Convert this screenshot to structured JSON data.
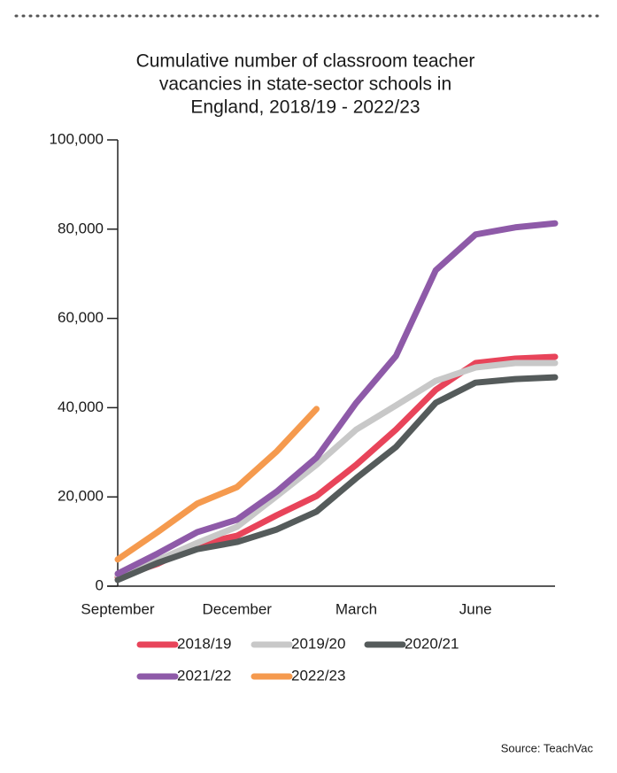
{
  "chart_data": {
    "type": "line",
    "title": [
      "Cumulative number of classroom teacher",
      "vacancies in state-sector schools in",
      "England, 2018/19 - 2022/23"
    ],
    "source": "Source: TeachVac",
    "categories": [
      "September",
      null,
      null,
      "December",
      null,
      null,
      "March",
      null,
      null,
      "June",
      null,
      null
    ],
    "ylim": [
      0,
      100000
    ],
    "yticks": [
      0,
      {
        "value": 20000,
        "label": "20,000"
      },
      {
        "value": 40000,
        "label": "40,000"
      },
      {
        "value": 60000,
        "label": "60,000"
      },
      {
        "value": 80000,
        "label": "80,000"
      },
      {
        "value": 100000,
        "label": "100,000"
      }
    ],
    "series": [
      {
        "name": "2018/19",
        "color": "#e8445a",
        "values": [
          2000,
          5000,
          9300,
          11300,
          15900,
          20200,
          27200,
          35100,
          44000,
          50000,
          51000,
          51400
        ]
      },
      {
        "name": "2019/20",
        "color": "#c8c8c8",
        "values": [
          2400,
          5800,
          9700,
          13300,
          20200,
          27200,
          35100,
          40500,
          46000,
          49000,
          50000,
          50000
        ]
      },
      {
        "name": "2020/21",
        "color": "#555b5b",
        "values": [
          1400,
          5200,
          8300,
          9900,
          12700,
          16700,
          24200,
          31200,
          41100,
          45600,
          46400,
          46800
        ]
      },
      {
        "name": "2021/22",
        "color": "#8e5aa8",
        "values": [
          2800,
          7300,
          12100,
          14900,
          21200,
          28800,
          41100,
          51600,
          70800,
          78800,
          80400,
          81300
        ]
      },
      {
        "name": "2022/23",
        "color": "#f59a4e",
        "values": [
          6000,
          12100,
          18500,
          22200,
          30200,
          39700,
          null,
          null,
          null,
          null,
          null,
          null
        ]
      }
    ]
  }
}
